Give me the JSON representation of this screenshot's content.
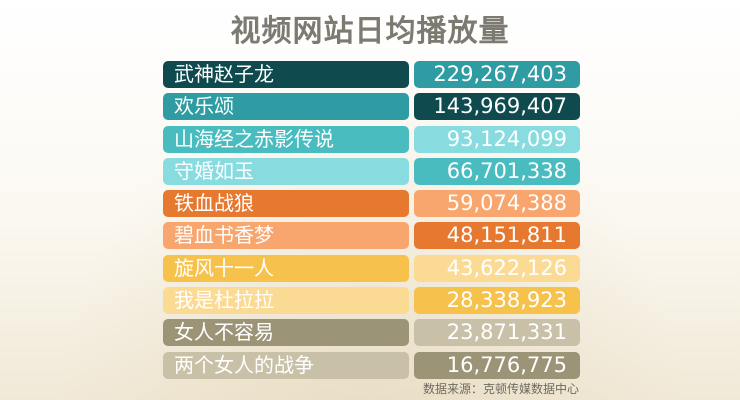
{
  "title": "视频网站日均播放量",
  "source": "数据来源：克顿传媒数据中心",
  "chart_data": {
    "type": "table",
    "title": "视频网站日均播放量",
    "columns": [
      "",
      ""
    ],
    "rows": [
      {
        "name": "武神赵子龙",
        "value": "229,267,403",
        "name_color": "#0f4a4e",
        "value_color": "#2e9ca2"
      },
      {
        "name": "欢乐颂",
        "value": "143,969,407",
        "name_color": "#2e9ca2",
        "value_color": "#0f4a4e"
      },
      {
        "name": "山海经之赤影传说",
        "value": "93,124,099",
        "name_color": "#49bcc0",
        "value_color": "#88dce0"
      },
      {
        "name": "守婚如玉",
        "value": "66,701,338",
        "name_color": "#88dce0",
        "value_color": "#49bcc0"
      },
      {
        "name": "铁血战狼",
        "value": "59,074,388",
        "name_color": "#e7782f",
        "value_color": "#f8a66e"
      },
      {
        "name": "碧血书香梦",
        "value": "48,151,811",
        "name_color": "#f8a66e",
        "value_color": "#e7782f"
      },
      {
        "name": "旋风十一人",
        "value": "43,622,126",
        "name_color": "#f7c24b",
        "value_color": "#fbdb94"
      },
      {
        "name": "我是杜拉拉",
        "value": "28,338,923",
        "name_color": "#fbdb94",
        "value_color": "#f7c24b"
      },
      {
        "name": "女人不容易",
        "value": "23,871,331",
        "name_color": "#9c9476",
        "value_color": "#c8c1a7"
      },
      {
        "name": "两个女人的战争",
        "value": "16,776,775",
        "name_color": "#c8c1a7",
        "value_color": "#9c9476"
      }
    ],
    "source": "数据来源：克顿传媒数据中心"
  }
}
